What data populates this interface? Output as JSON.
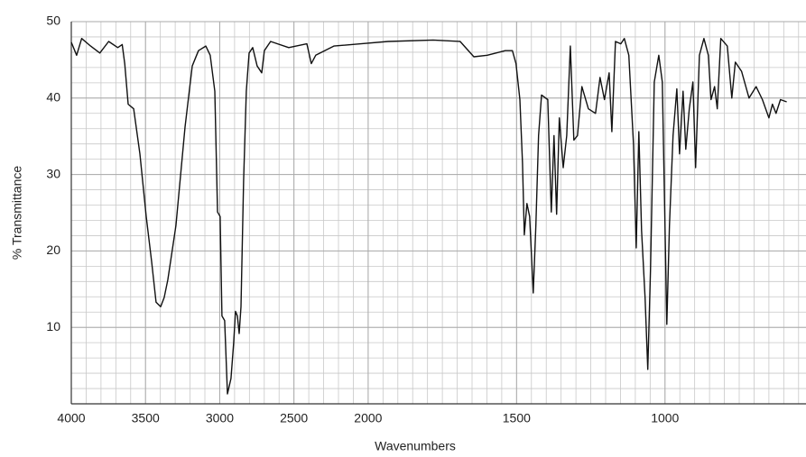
{
  "chart_data": {
    "type": "line",
    "xlabel": "Wavenumbers",
    "ylabel": "% Transmittance",
    "xlim": [
      4000,
      525
    ],
    "ylim": [
      0,
      50
    ],
    "x_scale_change": 2000,
    "xticks": [
      4000,
      3500,
      3000,
      2500,
      2000,
      1500,
      1000
    ],
    "yticks": [
      10,
      20,
      30,
      40,
      50
    ],
    "grid": true,
    "series": [
      {
        "color": "#111111",
        "x": [
          4000,
          3964,
          3930,
          3870,
          3808,
          3748,
          3687,
          3657,
          3640,
          3617,
          3580,
          3538,
          3495,
          3459,
          3429,
          3398,
          3374,
          3350,
          3295,
          3234,
          3185,
          3143,
          3094,
          3064,
          3033,
          3015,
          2997,
          2985,
          2967,
          2948,
          2924,
          2906,
          2894,
          2881,
          2869,
          2857,
          2839,
          2821,
          2802,
          2778,
          2748,
          2717,
          2699,
          2657,
          2535,
          2413,
          2383,
          2353,
          2231,
          2049,
          1933,
          1781,
          1690,
          1644,
          1599,
          1538,
          1514,
          1502,
          1489,
          1480,
          1474,
          1465,
          1456,
          1444,
          1435,
          1426,
          1416,
          1395,
          1383,
          1374,
          1365,
          1356,
          1343,
          1331,
          1319,
          1307,
          1295,
          1280,
          1258,
          1234,
          1219,
          1204,
          1188,
          1179,
          1167,
          1149,
          1137,
          1122,
          1106,
          1097,
          1088,
          1079,
          1067,
          1058,
          1049,
          1036,
          1021,
          1009,
          994,
          985,
          973,
          960,
          951,
          939,
          930,
          918,
          906,
          897,
          884,
          869,
          854,
          845,
          833,
          824,
          812,
          790,
          775,
          763,
          742,
          717,
          693,
          672,
          650,
          638,
          626,
          611,
          590
        ],
        "values": [
          47.3,
          45.6,
          47.8,
          46.8,
          45.9,
          47.4,
          46.6,
          47,
          44.5,
          39.2,
          38.6,
          32.7,
          24.5,
          18.6,
          13.3,
          12.7,
          13.9,
          16.2,
          23.3,
          36.2,
          44.2,
          46.2,
          46.8,
          45.6,
          40.9,
          25.1,
          24.5,
          11.5,
          10.9,
          1.3,
          3.3,
          8,
          12.1,
          11.5,
          9.2,
          12.7,
          29.2,
          40.9,
          45.9,
          46.6,
          44.2,
          43.3,
          46.2,
          47.4,
          46.6,
          47.1,
          44.5,
          45.6,
          46.8,
          47.1,
          47.4,
          47.6,
          47.4,
          45.4,
          45.6,
          46.2,
          46.2,
          44.5,
          39.8,
          31.5,
          22.1,
          26.2,
          24.5,
          14.5,
          23.3,
          35.1,
          40.4,
          39.8,
          25.1,
          35.1,
          24.8,
          37.4,
          30.9,
          35.1,
          46.8,
          34.5,
          35.1,
          41.5,
          38.6,
          38,
          42.7,
          39.8,
          43.3,
          35.6,
          47.4,
          47.1,
          47.8,
          45.6,
          33.9,
          20.4,
          35.6,
          22.7,
          13.9,
          4.5,
          17.4,
          42.1,
          45.6,
          42.1,
          10.4,
          23.3,
          35.1,
          41.2,
          32.7,
          40.9,
          33.3,
          38.6,
          42.1,
          30.9,
          45.6,
          47.8,
          45.6,
          39.8,
          41.5,
          38.6,
          47.8,
          46.8,
          40,
          44.7,
          43.5,
          40,
          41.5,
          39.8,
          37.4,
          39.2,
          38,
          39.8,
          39.5
        ]
      }
    ]
  }
}
